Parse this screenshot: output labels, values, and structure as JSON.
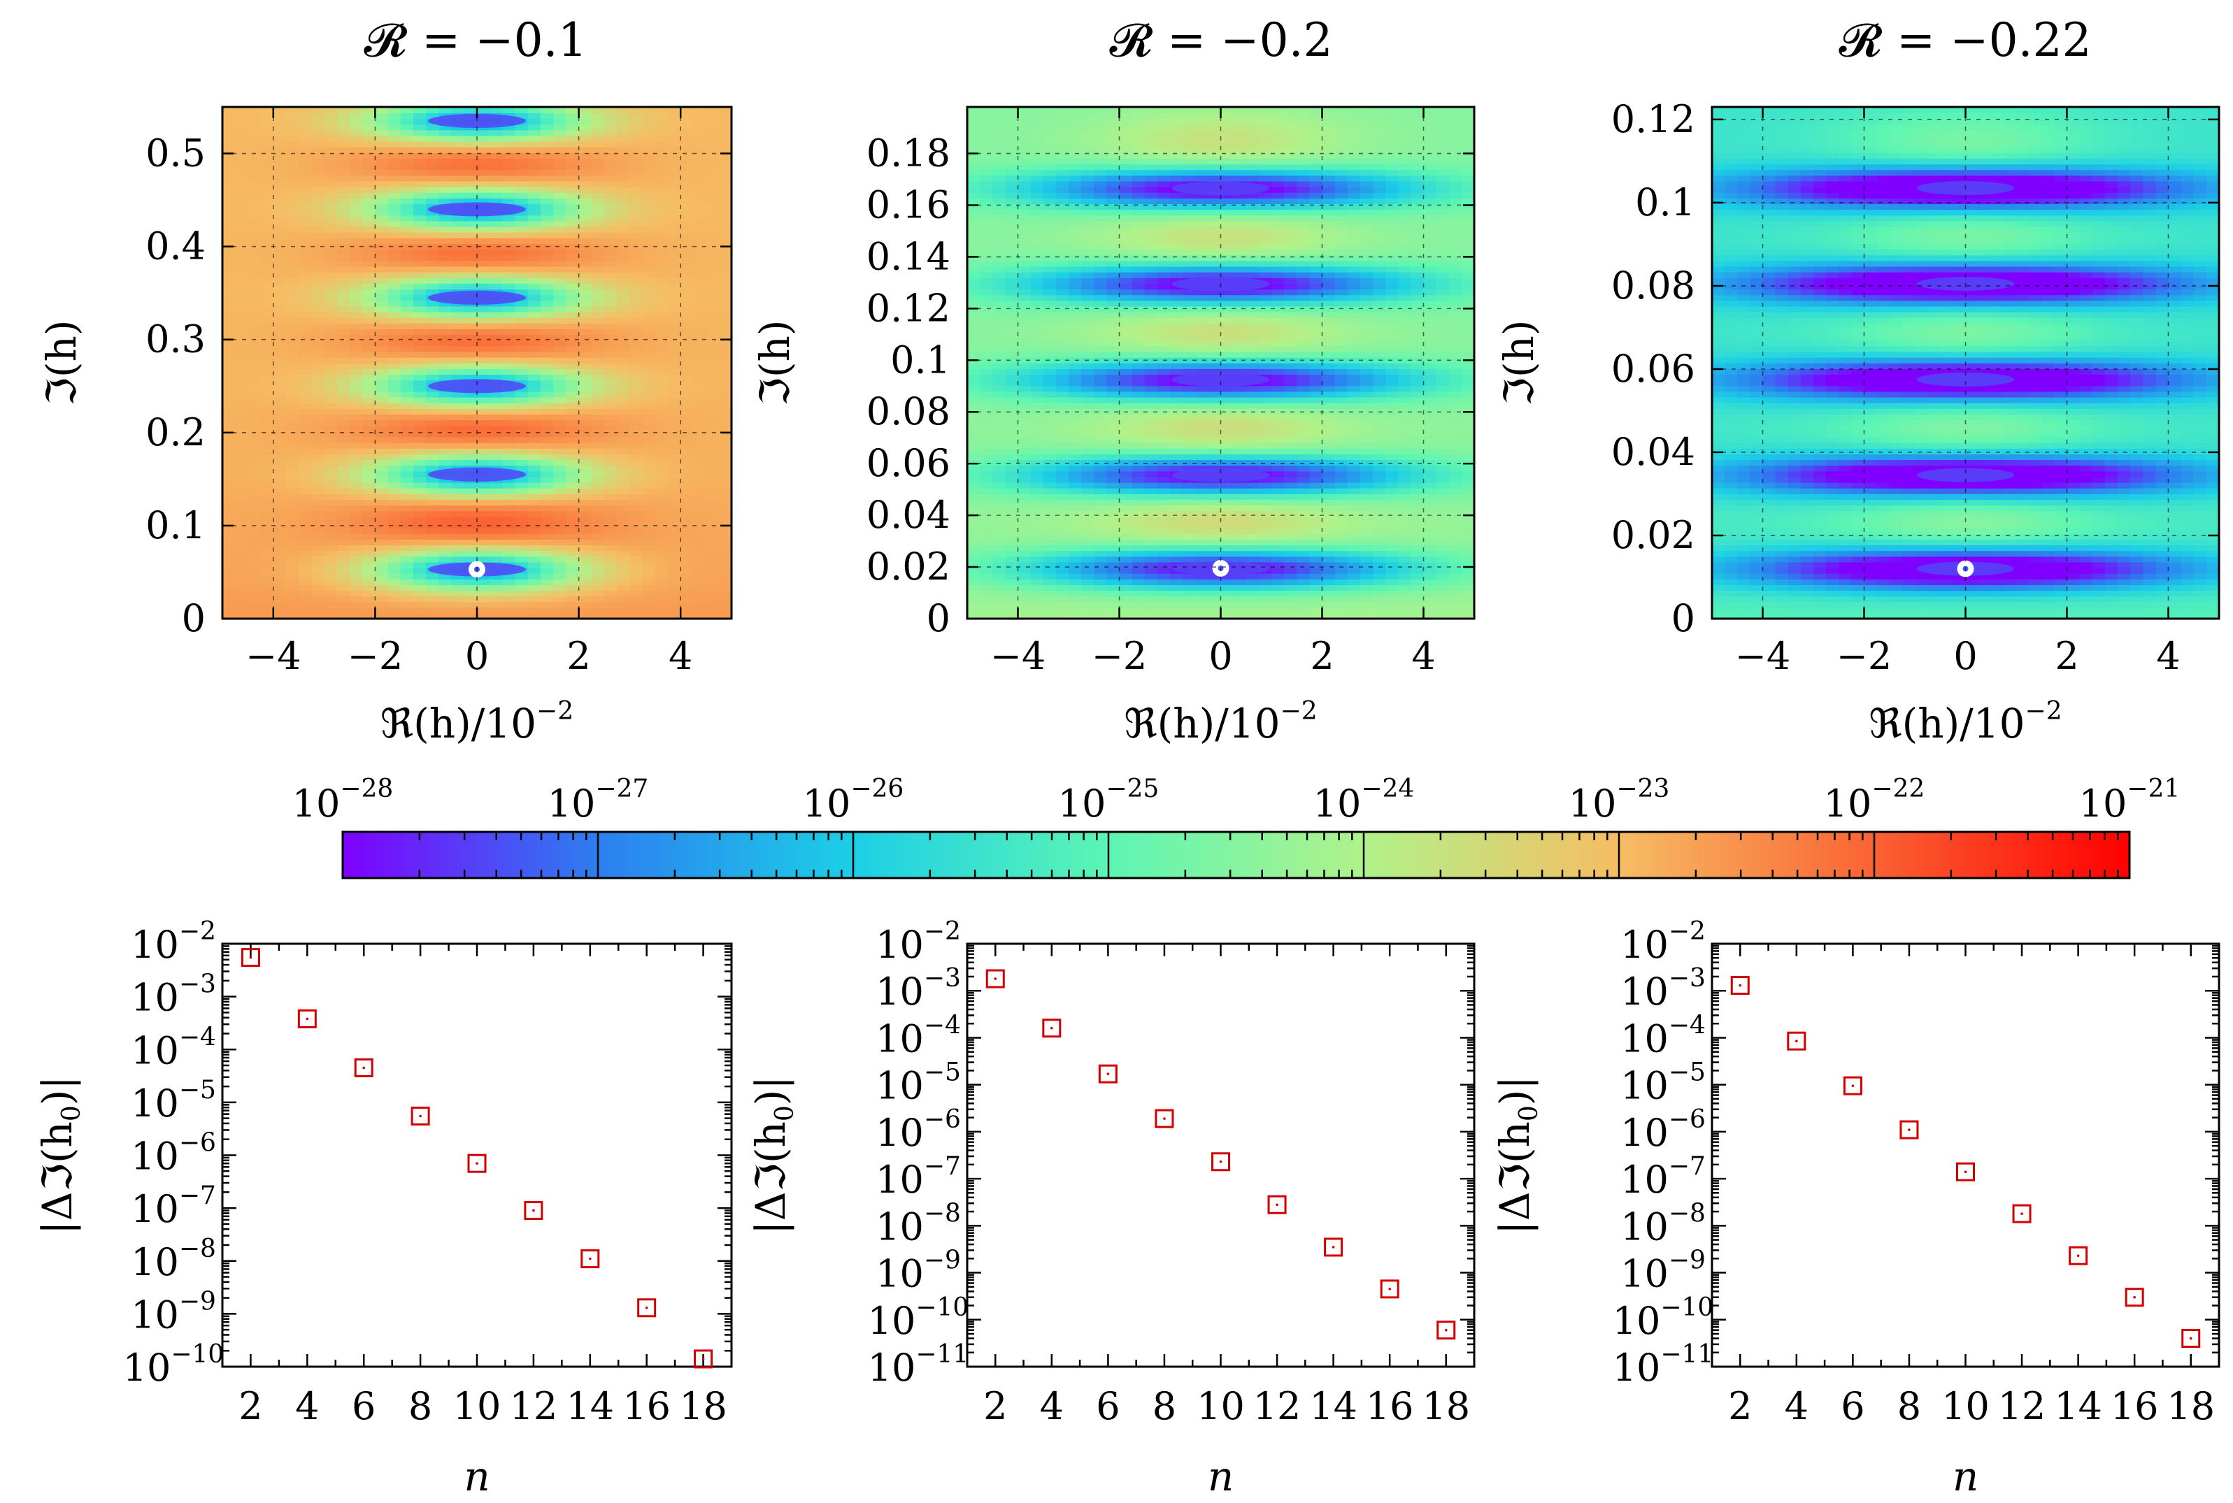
{
  "colors": {
    "colormap": [
      "#7f00ff",
      "#2c7ff0",
      "#1ccfe6",
      "#5cf5b4",
      "#b0f28a",
      "#f6bd63",
      "#fa6233",
      "#ff0000"
    ],
    "marker": "#d40000"
  },
  "chart_data": [
    {
      "type": "heatmap",
      "title": "𝓡 = −0.1",
      "xlabel": "ℜ(h)/10",
      "xlabel_exp": "−2",
      "ylabel": "ℑ(h)",
      "xlim": [
        -5,
        5
      ],
      "ylim": [
        0,
        0.55
      ],
      "xticks": [
        -4,
        -2,
        0,
        2,
        4
      ],
      "xtick_labels": [
        "−4",
        "−2",
        "0",
        "2",
        "4"
      ],
      "yticks": [
        0,
        0.1,
        0.2,
        0.3,
        0.4,
        0.5
      ],
      "ytick_labels": [
        "0",
        "0.1",
        "0.2",
        "0.3",
        "0.4",
        "0.5"
      ],
      "zero_im_values": [
        0.053,
        0.155,
        0.25,
        0.345,
        0.44,
        0.535
      ],
      "highlighted_point": [
        0,
        0.053
      ],
      "background_level": 0.72,
      "zero_width": 1.2
    },
    {
      "type": "heatmap",
      "title": "𝓡 = −0.2",
      "xlabel": "ℜ(h)/10",
      "xlabel_exp": "−2",
      "ylabel": "ℑ(h)",
      "xlim": [
        -5,
        5
      ],
      "ylim": [
        0,
        0.198
      ],
      "xticks": [
        -4,
        -2,
        0,
        2,
        4
      ],
      "xtick_labels": [
        "−4",
        "−2",
        "0",
        "2",
        "4"
      ],
      "yticks": [
        0,
        0.02,
        0.04,
        0.06,
        0.08,
        0.1,
        0.12,
        0.14,
        0.16,
        0.18
      ],
      "ytick_labels": [
        "0",
        "0.02",
        "0.04",
        "0.06",
        "0.08",
        "0.1",
        "0.12",
        "0.14",
        "0.16",
        "0.18"
      ],
      "zero_im_values": [
        0.0195,
        0.0555,
        0.0925,
        0.1295,
        0.1665
      ],
      "highlighted_point": [
        0,
        0.0195
      ],
      "background_level": 0.5,
      "zero_width": 2.2
    },
    {
      "type": "heatmap",
      "title": "𝓡 = −0.22",
      "xlabel": "ℜ(h)/10",
      "xlabel_exp": "−2",
      "ylabel": "ℑ(h)",
      "xlim": [
        -5,
        5
      ],
      "ylim": [
        0,
        0.123
      ],
      "xticks": [
        -4,
        -2,
        0,
        2,
        4
      ],
      "xtick_labels": [
        "−4",
        "−2",
        "0",
        "2",
        "4"
      ],
      "yticks": [
        0,
        0.02,
        0.04,
        0.06,
        0.08,
        0.1,
        0.12
      ],
      "ytick_labels": [
        "0",
        "0.02",
        "0.04",
        "0.06",
        "0.08",
        "0.1",
        "0.12"
      ],
      "zero_im_values": [
        0.012,
        0.0345,
        0.0575,
        0.0805,
        0.1035
      ],
      "highlighted_point": [
        0,
        0.012
      ],
      "background_level": 0.36,
      "zero_width": 2.6
    },
    {
      "type": "colorbar",
      "scale": "log",
      "range_exponents": [
        -28,
        -21
      ],
      "tick_base": "10",
      "tick_exponents": [
        "−28",
        "−27",
        "−26",
        "−25",
        "−24",
        "−23",
        "−22",
        "−21"
      ]
    },
    {
      "type": "scatter",
      "yscale": "log",
      "xlabel": "n",
      "ylabel": "|Δℑ(h",
      "ylabel_sub": "0",
      "ylabel_tail": ")|",
      "xlim": [
        1,
        19
      ],
      "xticks": [
        2,
        4,
        6,
        8,
        10,
        12,
        14,
        16,
        18
      ],
      "xtick_labels": [
        "2",
        "4",
        "6",
        "8",
        "10",
        "12",
        "14",
        "16",
        "18"
      ],
      "ylim_exponents": [
        -10,
        -2
      ],
      "ytick_exponents": [
        "−2",
        "−3",
        "−4",
        "−5",
        "−6",
        "−7",
        "−8",
        "−9",
        "−10"
      ],
      "x": [
        2,
        4,
        6,
        8,
        10,
        12,
        14,
        16,
        18
      ],
      "y": [
        0.0055,
        0.00038,
        4.5e-05,
        5.5e-06,
        7e-07,
        9e-08,
        1.1e-08,
        1.3e-09,
        1.4e-10
      ]
    },
    {
      "type": "scatter",
      "yscale": "log",
      "xlabel": "n",
      "ylabel": "|Δℑ(h",
      "ylabel_sub": "0",
      "ylabel_tail": ")|",
      "xlim": [
        1,
        19
      ],
      "xticks": [
        2,
        4,
        6,
        8,
        10,
        12,
        14,
        16,
        18
      ],
      "xtick_labels": [
        "2",
        "4",
        "6",
        "8",
        "10",
        "12",
        "14",
        "16",
        "18"
      ],
      "ylim_exponents": [
        -11,
        -2
      ],
      "ytick_exponents": [
        "−2",
        "−3",
        "−4",
        "−5",
        "−6",
        "−7",
        "−8",
        "−9",
        "−10",
        "−11"
      ],
      "x": [
        2,
        4,
        6,
        8,
        10,
        12,
        14,
        16,
        18
      ],
      "y": [
        0.0018,
        0.00016,
        1.7e-05,
        1.9e-06,
        2.3e-07,
        2.8e-08,
        3.5e-09,
        4.5e-10,
        6e-11
      ]
    },
    {
      "type": "scatter",
      "yscale": "log",
      "xlabel": "n",
      "ylabel": "|Δℑ(h",
      "ylabel_sub": "0",
      "ylabel_tail": ")|",
      "xlim": [
        1,
        19
      ],
      "xticks": [
        2,
        4,
        6,
        8,
        10,
        12,
        14,
        16,
        18
      ],
      "xtick_labels": [
        "2",
        "4",
        "6",
        "8",
        "10",
        "12",
        "14",
        "16",
        "18"
      ],
      "ylim_exponents": [
        -11,
        -2
      ],
      "ytick_exponents": [
        "−2",
        "−3",
        "−4",
        "−5",
        "−6",
        "−7",
        "−8",
        "−9",
        "−10",
        "−11"
      ],
      "x": [
        2,
        4,
        6,
        8,
        10,
        12,
        14,
        16,
        18
      ],
      "y": [
        0.0013,
        8.5e-05,
        9.5e-06,
        1.1e-06,
        1.4e-07,
        1.8e-08,
        2.3e-09,
        3e-10,
        4e-11
      ]
    }
  ]
}
